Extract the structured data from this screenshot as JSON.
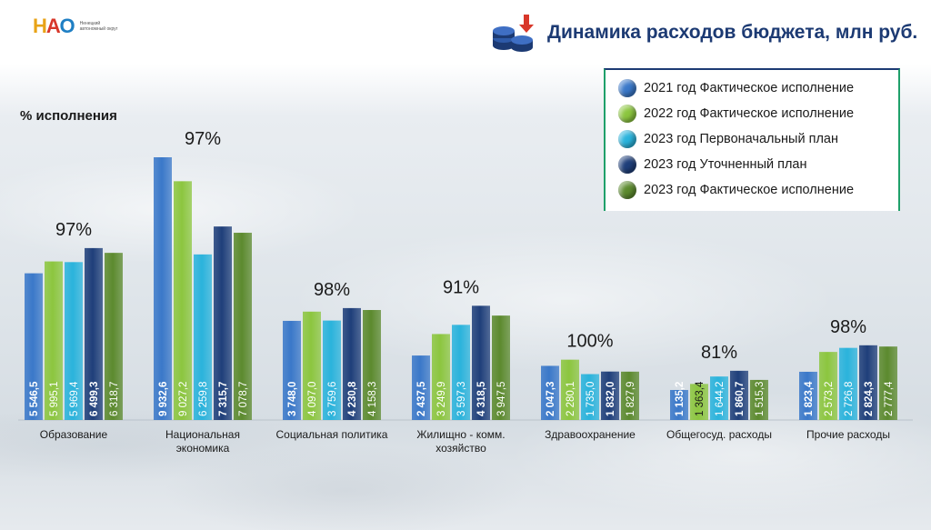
{
  "logo": {
    "text_parts": [
      "Н",
      "А",
      "О"
    ],
    "caption": "Ненецкий автономный округ"
  },
  "header": {
    "title": "Динамика расходов бюджета, млн руб.",
    "icon": "coins-down-arrow-icon"
  },
  "pct_heading": "% исполнения",
  "colors": {
    "s2021fact": "#3a78c9",
    "s2022fact": "#8cc63f",
    "s2023plan": "#2ab3dc",
    "s2023refined": "#1f3f7a",
    "s2023fact": "#5c8a2e"
  },
  "chart_data": {
    "type": "bar",
    "title": "Динамика расходов бюджета, млн руб.",
    "xlabel": "",
    "ylabel": "",
    "legend_position": "top-right",
    "categories": [
      [
        "Образование"
      ],
      [
        "Национальная",
        "экономика"
      ],
      [
        "Социальная политика"
      ],
      [
        "Жилищно - комм.",
        "хозяйство"
      ],
      [
        "Здравоохранение"
      ],
      [
        "Общегосуд. расходы"
      ],
      [
        "Прочие расходы"
      ]
    ],
    "series": [
      {
        "name": "2021 год Фактическое исполнение",
        "color": "#3a78c9",
        "values": [
          5546.5,
          9932.6,
          3748.0,
          2437.5,
          2047.3,
          1135.2,
          1823.4
        ],
        "labels": [
          "5 546,5",
          "9 932,6",
          "3 748,0",
          "2 437,5",
          "2 047,3",
          "1 135,2",
          "1 823,4"
        ]
      },
      {
        "name": "2022 год Фактическое исполнение",
        "color": "#8cc63f",
        "values": [
          5995.1,
          9027.2,
          4097.0,
          3249.9,
          2280.1,
          1363.4,
          2573.2
        ],
        "labels": [
          "5 995,1",
          "9 027,2",
          "4 097,0",
          "3 249,9",
          "2 280,1",
          "1 363,4",
          "2 573,2"
        ]
      },
      {
        "name": "2023 год Первоначальный план",
        "color": "#2ab3dc",
        "values": [
          5969.4,
          6259.8,
          3759.6,
          3597.3,
          1735.0,
          1644.2,
          2726.8
        ],
        "labels": [
          "5 969,4",
          "6 259,8",
          "3 759,6",
          "3 597,3",
          "1 735,0",
          "1 644,2",
          "2 726,8"
        ]
      },
      {
        "name": "2023 год Уточненный план",
        "color": "#1f3f7a",
        "values": [
          6499.3,
          7315.7,
          4230.8,
          4318.5,
          1832.0,
          1860.7,
          2824.3
        ],
        "labels": [
          "6 499,3",
          "7 315,7",
          "4 230,8",
          "4 318,5",
          "1 832,0",
          "1 860,7",
          "2 824,3"
        ]
      },
      {
        "name": "2023 год Фактическое исполнение",
        "color": "#5c8a2e",
        "values": [
          6318.7,
          7078.7,
          4158.3,
          3947.5,
          1827.9,
          1515.3,
          2777.4
        ],
        "labels": [
          "6 318,7",
          "7 078,7",
          "4 158,3",
          "3 947,5",
          "1 827,9",
          "1 515,3",
          "2 777,4"
        ]
      }
    ],
    "execution_percent": [
      "97%",
      "97%",
      "98%",
      "91%",
      "100%",
      "81%",
      "98%"
    ]
  }
}
